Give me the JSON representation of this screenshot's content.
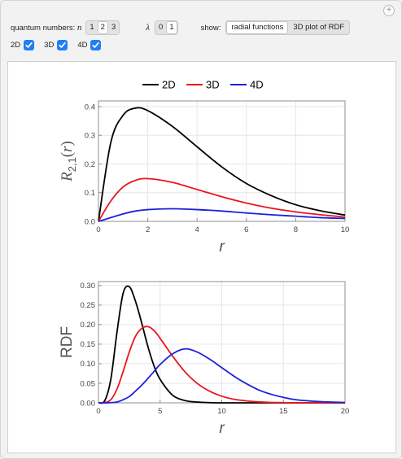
{
  "controls": {
    "qn_label": "quantum numbers:",
    "n_symbol": "n",
    "n_options": [
      "1",
      "2",
      "3"
    ],
    "n_selected": "2",
    "lambda_symbol": "λ",
    "lambda_options": [
      "0",
      "1"
    ],
    "lambda_selected": "1",
    "show_label": "show:",
    "show_options": [
      "radial functions",
      "3D plot of RDF"
    ],
    "show_selected": "radial functions",
    "add_icon": "plus-icon",
    "checkboxes": [
      {
        "label": "2D",
        "checked": true
      },
      {
        "label": "3D",
        "checked": true
      },
      {
        "label": "4D",
        "checked": true
      }
    ]
  },
  "colors": {
    "2D": "#000000",
    "3D": "#e8161b",
    "4D": "#1b22d9",
    "checkbox": "#1f7ff5"
  },
  "legend": [
    "2D",
    "3D",
    "4D"
  ],
  "chart_data": [
    {
      "type": "line",
      "ylabel": "R2,1(r)",
      "ylabel_main": "R",
      "ylabel_sub": "2,1",
      "ylabel_arg": "(r)",
      "xlabel": "r",
      "xlim": [
        0,
        10
      ],
      "ylim": [
        0,
        0.42
      ],
      "xticks": [
        0,
        2,
        4,
        6,
        8,
        10
      ],
      "yticks": [
        0.0,
        0.1,
        0.2,
        0.3,
        0.4
      ],
      "ytick_labels": [
        "0.0",
        "0.1",
        "0.2",
        "0.3",
        "0.4"
      ],
      "grid": true,
      "x": [
        0,
        0.5,
        1,
        1.5,
        2,
        3,
        4,
        5,
        6,
        7,
        8,
        9,
        10
      ],
      "series": [
        {
          "name": "2D",
          "values": [
            0,
            0.275,
            0.37,
            0.395,
            0.386,
            0.331,
            0.26,
            0.19,
            0.132,
            0.09,
            0.058,
            0.037,
            0.022
          ]
        },
        {
          "name": "3D",
          "values": [
            0,
            0.071,
            0.12,
            0.143,
            0.149,
            0.136,
            0.111,
            0.086,
            0.064,
            0.046,
            0.033,
            0.023,
            0.015
          ]
        },
        {
          "name": "4D",
          "values": [
            0,
            0.013,
            0.026,
            0.036,
            0.041,
            0.044,
            0.041,
            0.036,
            0.029,
            0.023,
            0.018,
            0.013,
            0.01
          ]
        }
      ]
    },
    {
      "type": "line",
      "ylabel": "RDF",
      "xlabel": "r",
      "xlim": [
        0,
        20
      ],
      "ylim": [
        0,
        0.31
      ],
      "xticks": [
        0,
        5,
        10,
        15,
        20
      ],
      "yticks": [
        0.0,
        0.05,
        0.1,
        0.15,
        0.2,
        0.25,
        0.3
      ],
      "ytick_labels": [
        "0.00",
        "0.05",
        "0.10",
        "0.15",
        "0.20",
        "0.25",
        "0.30"
      ],
      "grid": true,
      "x": [
        0,
        0.5,
        1,
        1.5,
        2,
        2.5,
        3,
        3.5,
        4,
        4.5,
        5,
        6,
        7,
        8,
        9,
        10,
        11,
        12,
        13,
        14,
        15,
        16,
        18,
        20
      ],
      "series": [
        {
          "name": "2D",
          "values": [
            0,
            0.005,
            0.06,
            0.18,
            0.28,
            0.297,
            0.26,
            0.205,
            0.145,
            0.095,
            0.06,
            0.02,
            0.006,
            0.002,
            0.0005,
            0,
            0,
            0,
            0,
            0,
            0,
            0,
            0,
            0
          ]
        },
        {
          "name": "3D",
          "values": [
            0,
            0.0005,
            0.008,
            0.035,
            0.08,
            0.13,
            0.17,
            0.19,
            0.195,
            0.185,
            0.165,
            0.12,
            0.08,
            0.05,
            0.03,
            0.017,
            0.009,
            0.005,
            0.0025,
            0.001,
            0.0005,
            0,
            0,
            0
          ]
        },
        {
          "name": "4D",
          "values": [
            0,
            0,
            0.0005,
            0.002,
            0.008,
            0.016,
            0.03,
            0.045,
            0.062,
            0.08,
            0.098,
            0.125,
            0.138,
            0.13,
            0.112,
            0.09,
            0.068,
            0.049,
            0.033,
            0.022,
            0.014,
            0.008,
            0.003,
            0.001
          ]
        }
      ]
    }
  ]
}
